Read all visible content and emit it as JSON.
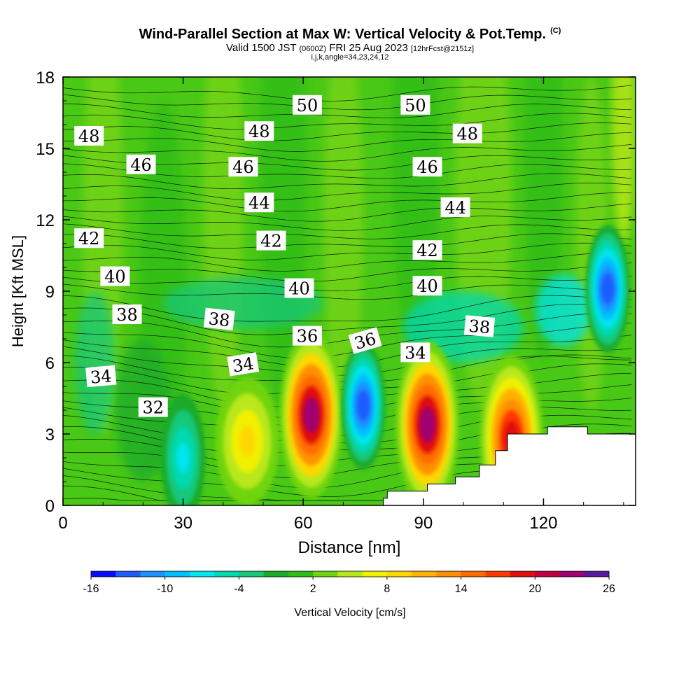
{
  "title": {
    "main": "Wind-Parallel Section at Max W: Vertical Velocity & Pot.Temp.",
    "copyright": "(C)",
    "valid_prefix": "Valid 1500 JST",
    "valid_z": "(0600Z)",
    "valid_date": "FRI 25 Aug 2023",
    "forecast": "[12hrFcst@2151z]",
    "indices": "i,j,k,angle=34,23,24,12"
  },
  "chart_data": {
    "type": "heatmap",
    "xlabel": "Distance [nm]",
    "ylabel": "Height [Kft MSL]",
    "xlim": [
      0,
      143
    ],
    "ylim": [
      0,
      18
    ],
    "xticks": [
      "0",
      "30",
      "60",
      "90",
      "120"
    ],
    "yticks": [
      "0",
      "3",
      "6",
      "9",
      "12",
      "15",
      "18"
    ],
    "colorbar": {
      "label": "Vertical Velocity [cm/s]",
      "min": -16,
      "max": 26,
      "tick_labels": [
        "-16",
        "-10",
        "-4",
        "2",
        "8",
        "14",
        "20",
        "26"
      ],
      "colors": [
        "#0a0aff",
        "#1f5cff",
        "#1e90ff",
        "#00bfff",
        "#00e5ee",
        "#00d8b0",
        "#19c879",
        "#1aaa2a",
        "#2fbc15",
        "#70d411",
        "#b8e81a",
        "#f0f000",
        "#ffd700",
        "#ffb300",
        "#ff9000",
        "#ff6a00",
        "#ff3a00",
        "#e01010",
        "#c00040",
        "#a00070",
        "#5a1a9e"
      ]
    },
    "velocity_features": [
      {
        "x": 62,
        "y": 3.8,
        "w": 26,
        "kind": "updraft"
      },
      {
        "x": 75,
        "y": 4.2,
        "w": -14,
        "kind": "downdraft"
      },
      {
        "x": 91,
        "y": 3.4,
        "w": 26,
        "kind": "updraft"
      },
      {
        "x": 112,
        "y": 2.8,
        "w": 22,
        "kind": "updraft"
      },
      {
        "x": 46,
        "y": 2.7,
        "w": 10,
        "kind": "updraft"
      },
      {
        "x": 136,
        "y": 9.1,
        "w": -15,
        "kind": "downdraft"
      },
      {
        "x": 30,
        "y": 2.0,
        "w": -8,
        "kind": "downdraft"
      }
    ],
    "theta_labels": [
      {
        "text": "50",
        "x": 61,
        "y": 16.8,
        "rot": 0
      },
      {
        "text": "50",
        "x": 88,
        "y": 16.8,
        "rot": 0
      },
      {
        "text": "48",
        "x": 6.5,
        "y": 15.5,
        "rot": 0
      },
      {
        "text": "48",
        "x": 49,
        "y": 15.7,
        "rot": 0
      },
      {
        "text": "48",
        "x": 101,
        "y": 15.6,
        "rot": 0
      },
      {
        "text": "46",
        "x": 19.5,
        "y": 14.3,
        "rot": 0
      },
      {
        "text": "46",
        "x": 45,
        "y": 14.2,
        "rot": 0
      },
      {
        "text": "46",
        "x": 91,
        "y": 14.2,
        "rot": 0
      },
      {
        "text": "44",
        "x": 49,
        "y": 12.7,
        "rot": 0
      },
      {
        "text": "44",
        "x": 98,
        "y": 12.5,
        "rot": 0
      },
      {
        "text": "42",
        "x": 6.5,
        "y": 11.2,
        "rot": 0
      },
      {
        "text": "42",
        "x": 52,
        "y": 11.1,
        "rot": 0
      },
      {
        "text": "42",
        "x": 91,
        "y": 10.7,
        "rot": 0
      },
      {
        "text": "40",
        "x": 13,
        "y": 9.6,
        "rot": 0
      },
      {
        "text": "40",
        "x": 59,
        "y": 9.1,
        "rot": 0
      },
      {
        "text": "40",
        "x": 91,
        "y": 9.2,
        "rot": 0
      },
      {
        "text": "38",
        "x": 16,
        "y": 8.0,
        "rot": 0
      },
      {
        "text": "38",
        "x": 39,
        "y": 7.8,
        "rot": 6
      },
      {
        "text": "38",
        "x": 104,
        "y": 7.5,
        "rot": 5
      },
      {
        "text": "36",
        "x": 61,
        "y": 7.1,
        "rot": 0
      },
      {
        "text": "36",
        "x": 75.5,
        "y": 6.9,
        "rot": -16
      },
      {
        "text": "34",
        "x": 88,
        "y": 6.4,
        "rot": 0
      },
      {
        "text": "34",
        "x": 45,
        "y": 5.9,
        "rot": -9
      },
      {
        "text": "34",
        "x": 9.5,
        "y": 5.4,
        "rot": -5
      },
      {
        "text": "32",
        "x": 22.5,
        "y": 4.1,
        "rot": 0
      }
    ],
    "terrain": [
      [
        80,
        0.3
      ],
      [
        81,
        0.3
      ],
      [
        81,
        0.6
      ],
      [
        91,
        0.6
      ],
      [
        91,
        0.9
      ],
      [
        98,
        0.9
      ],
      [
        98,
        1.2
      ],
      [
        104,
        1.2
      ],
      [
        104,
        1.7
      ],
      [
        108,
        1.7
      ],
      [
        108,
        2.3
      ],
      [
        111,
        2.3
      ],
      [
        111,
        3.0
      ],
      [
        121,
        3.0
      ],
      [
        121,
        3.3
      ],
      [
        131,
        3.3
      ],
      [
        131,
        3.0
      ],
      [
        143,
        3.0
      ]
    ],
    "grid": false,
    "legend": "bottom"
  }
}
